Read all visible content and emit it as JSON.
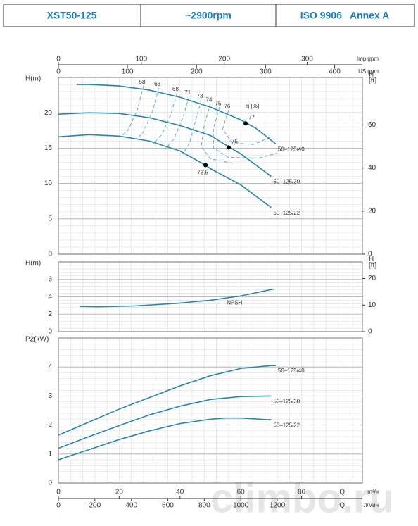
{
  "header": {
    "cells": [
      "XST50-125",
      "~2900rpm",
      "ISO 9906   Annex A"
    ]
  },
  "watermark": "climbo.ru",
  "q_axes": {
    "q_symbol": "Q",
    "top": [
      {
        "label": "Imp gpm",
        "xlim": [
          0,
          366.6
        ],
        "ticks": [
          0,
          100,
          200,
          300
        ]
      },
      {
        "label": "US gpm",
        "xlim": [
          0,
          440.3
        ],
        "ticks": [
          0,
          100,
          200,
          300,
          400
        ]
      }
    ],
    "bottom": [
      {
        "label": "m³/ч",
        "xlim": [
          0,
          100
        ],
        "ticks": [
          0,
          20,
          40,
          60,
          80
        ]
      },
      {
        "label": "л/мин",
        "xlim": [
          0,
          1666.7
        ],
        "ticks": [
          0,
          200,
          400,
          600,
          800,
          1000,
          1200
        ]
      }
    ]
  },
  "chart_data": [
    {
      "type": "line",
      "ylabel": "H(m)",
      "y2label": [
        "H",
        "[ft]"
      ],
      "eta_label": "η [%]",
      "xlim": [
        0,
        100
      ],
      "ylim": [
        0,
        25
      ],
      "yticks": [
        0,
        5,
        10,
        15,
        20
      ],
      "y2lim": [
        0,
        82.02
      ],
      "y2ticks": [
        0,
        20,
        40,
        60
      ],
      "grid": true,
      "series": [
        {
          "name": "50–125/40",
          "color": "#2a86a8",
          "x": [
            6,
            10,
            20,
            30,
            40,
            50,
            60,
            65,
            71.5
          ],
          "values": [
            24.0,
            24.0,
            23.8,
            23.2,
            22.2,
            20.8,
            19.0,
            17.8,
            15.6
          ],
          "bep": {
            "value": 77,
            "x": 61.6,
            "y": 18.5
          }
        },
        {
          "name": "50–125/30",
          "color": "#2a86a8",
          "x": [
            0,
            10,
            20,
            30,
            40,
            50,
            56,
            60,
            70
          ],
          "values": [
            19.8,
            20.0,
            19.9,
            19.3,
            18.2,
            16.8,
            15.2,
            14.2,
            11.0
          ],
          "bep": {
            "value": 75,
            "x": 56,
            "y": 15.1
          }
        },
        {
          "name": "50–125/22",
          "color": "#2a86a8",
          "x": [
            0,
            10,
            20,
            30,
            40,
            48.4,
            50,
            60,
            70
          ],
          "values": [
            16.6,
            16.9,
            16.7,
            16.0,
            14.6,
            12.6,
            12.1,
            9.8,
            6.6
          ],
          "bep": {
            "value": 73.5,
            "x": 48.4,
            "y": 12.6
          }
        }
      ],
      "efficiency_contours": [
        {
          "label": 58,
          "q": [
            28,
            26,
            23,
            21
          ],
          "h": [
            23.8,
            20.5,
            17.6,
            16.8
          ]
        },
        {
          "label": 63,
          "q": [
            33,
            31,
            28,
            26
          ],
          "h": [
            23.5,
            20.3,
            17.3,
            16.4
          ]
        },
        {
          "label": 68,
          "q": [
            39,
            37,
            34,
            31
          ],
          "h": [
            22.8,
            19.8,
            16.9,
            15.6
          ]
        },
        {
          "label": 71,
          "q": [
            43,
            41,
            38,
            35
          ],
          "h": [
            22.3,
            19.4,
            16.3,
            14.8
          ]
        },
        {
          "label": 73,
          "q": [
            47,
            45,
            43,
            41
          ],
          "h": [
            21.8,
            18.7,
            15.6,
            14.2
          ]
        },
        {
          "label": 74,
          "q": [
            50,
            48,
            47,
            50,
            58
          ],
          "h": [
            21.3,
            18.3,
            15.2,
            13.5,
            12.8
          ]
        },
        {
          "label": 75,
          "q": [
            53,
            51,
            51,
            56,
            66,
            72
          ],
          "h": [
            20.8,
            17.8,
            15.0,
            13.7,
            13.6,
            14.3
          ]
        },
        {
          "label": 76,
          "q": [
            56,
            54,
            57,
            64,
            70
          ],
          "h": [
            20.4,
            17.7,
            15.8,
            15.5,
            16.6
          ]
        }
      ]
    },
    {
      "type": "line",
      "ylabel": "H(m)",
      "y2label": [
        "H",
        "[ft]"
      ],
      "xlim": [
        0,
        100
      ],
      "ylim": [
        0,
        8
      ],
      "yticks": [
        0,
        2,
        4,
        6
      ],
      "y2lim": [
        0,
        26.25
      ],
      "y2ticks": [
        0,
        10,
        20
      ],
      "grid": true,
      "series": [
        {
          "name": "NPSH",
          "color": "#2a86a8",
          "x": [
            7,
            13,
            25,
            39,
            50,
            60,
            71
          ],
          "values": [
            2.9,
            2.85,
            2.95,
            3.25,
            3.6,
            4.1,
            4.9
          ]
        }
      ]
    },
    {
      "type": "line",
      "ylabel": "P2(kW)",
      "xlim": [
        0,
        100
      ],
      "ylim": [
        0,
        5
      ],
      "yticks": [
        0,
        1,
        2,
        3,
        4
      ],
      "grid": true,
      "series": [
        {
          "name": "50–125/40",
          "color": "#2a86a8",
          "x": [
            0,
            10,
            20,
            30,
            40,
            50,
            60,
            70,
            71.5
          ],
          "values": [
            1.65,
            2.1,
            2.55,
            2.95,
            3.35,
            3.7,
            3.95,
            4.05,
            4.05
          ]
        },
        {
          "name": "50–125/30",
          "color": "#2a86a8",
          "x": [
            0,
            10,
            20,
            30,
            40,
            50,
            60,
            70
          ],
          "values": [
            1.2,
            1.6,
            1.98,
            2.35,
            2.65,
            2.88,
            2.98,
            3.0
          ]
        },
        {
          "name": "50–125/22",
          "color": "#2a86a8",
          "x": [
            0,
            10,
            20,
            30,
            40,
            50,
            55,
            60,
            70
          ],
          "values": [
            0.8,
            1.15,
            1.5,
            1.8,
            2.05,
            2.2,
            2.24,
            2.24,
            2.18
          ]
        }
      ]
    }
  ]
}
